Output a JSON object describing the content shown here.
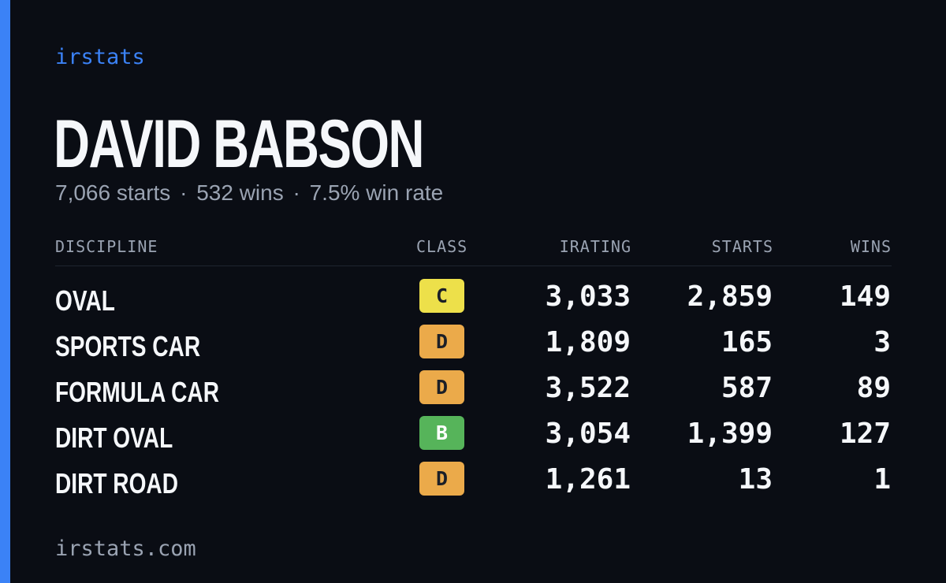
{
  "brand": "irstats",
  "driver_name": "DAVID BABSON",
  "summary": {
    "starts": "7,066 starts",
    "wins": "532 wins",
    "win_rate": "7.5% win rate",
    "separator": "·"
  },
  "table": {
    "headers": {
      "discipline": "DISCIPLINE",
      "class": "CLASS",
      "irating": "IRATING",
      "starts": "STARTS",
      "wins": "WINS"
    },
    "rows": [
      {
        "discipline": "OVAL",
        "class": "C",
        "class_color": "#ede04a",
        "irating": "3,033",
        "starts": "2,859",
        "wins": "149"
      },
      {
        "discipline": "SPORTS CAR",
        "class": "D",
        "class_color": "#ebaa4a",
        "irating": "1,809",
        "starts": "165",
        "wins": "3"
      },
      {
        "discipline": "FORMULA CAR",
        "class": "D",
        "class_color": "#ebaa4a",
        "irating": "3,522",
        "starts": "587",
        "wins": "89"
      },
      {
        "discipline": "DIRT OVAL",
        "class": "B",
        "class_color": "#56b45a",
        "irating": "3,054",
        "starts": "1,399",
        "wins": "127"
      },
      {
        "discipline": "DIRT ROAD",
        "class": "D",
        "class_color": "#ebaa4a",
        "irating": "1,261",
        "starts": "13",
        "wins": "1"
      }
    ]
  },
  "footer": "irstats.com",
  "colors": {
    "accent": "#3b82f6",
    "background": "#0a0d14",
    "text_primary": "#f5f7fa",
    "text_muted": "#9aa3b2"
  }
}
